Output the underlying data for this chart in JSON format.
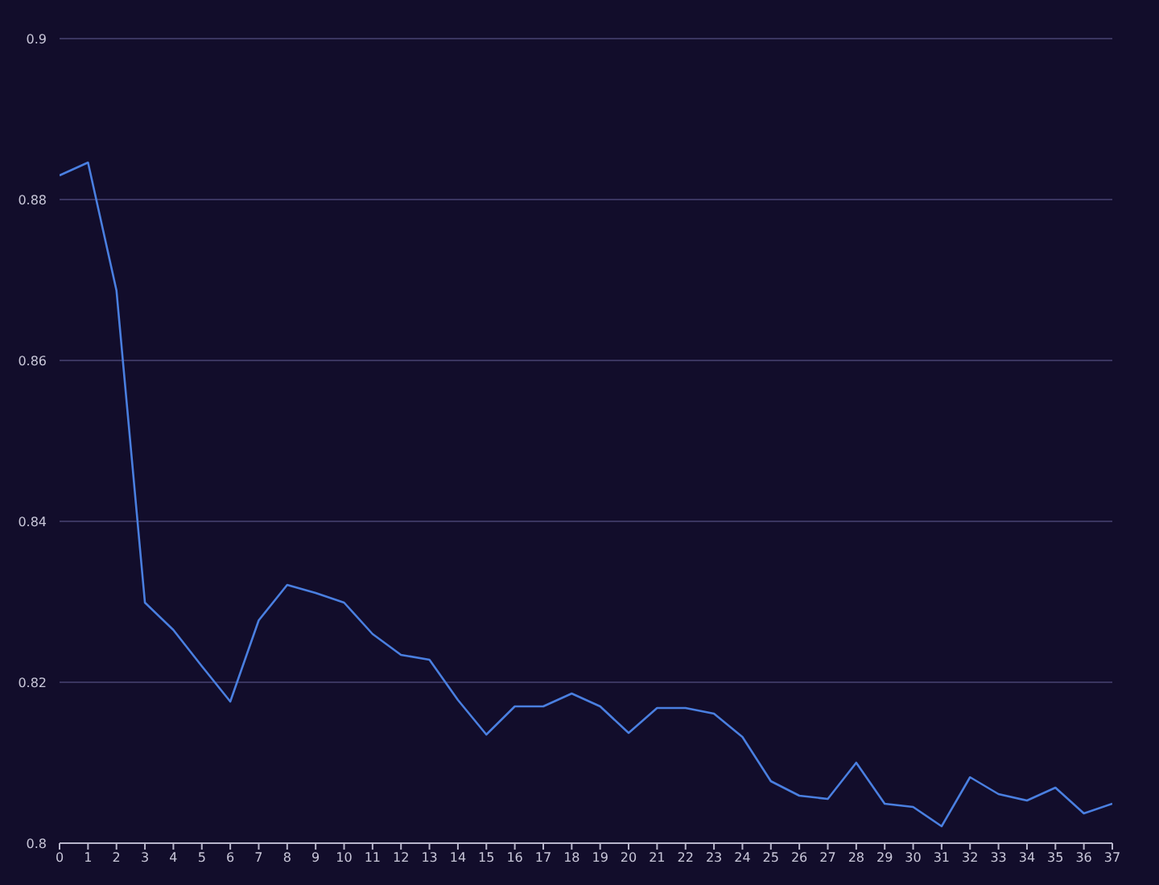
{
  "chart_data": {
    "type": "line",
    "x": [
      0,
      1,
      2,
      3,
      4,
      5,
      6,
      7,
      8,
      9,
      10,
      11,
      12,
      13,
      14,
      15,
      16,
      17,
      18,
      19,
      20,
      21,
      22,
      23,
      24,
      25,
      26,
      27,
      28,
      29,
      30,
      31,
      32,
      33,
      34,
      35,
      36,
      37
    ],
    "series": [
      {
        "color": "#4a7fe0",
        "values": [
          0.883,
          0.8846,
          0.8687,
          0.8299,
          0.8265,
          0.822,
          0.8176,
          0.8277,
          0.8321,
          0.8311,
          0.8299,
          0.826,
          0.8234,
          0.8228,
          0.8178,
          0.8135,
          0.817,
          0.817,
          0.8186,
          0.817,
          0.8137,
          0.8168,
          0.8168,
          0.8161,
          0.8132,
          0.8077,
          0.8059,
          0.8055,
          0.81,
          0.8049,
          0.8045,
          0.8021,
          0.8082,
          0.8061,
          0.8053,
          0.8069,
          0.8037,
          0.8049
        ]
      }
    ],
    "xlim": [
      0,
      37
    ],
    "xticks": [
      0,
      1,
      2,
      3,
      4,
      5,
      6,
      7,
      8,
      9,
      10,
      11,
      12,
      13,
      14,
      15,
      16,
      17,
      18,
      19,
      20,
      21,
      22,
      23,
      24,
      25,
      26,
      27,
      28,
      29,
      30,
      31,
      32,
      33,
      34,
      35,
      36,
      37
    ],
    "ylim": [
      0.8,
      0.9
    ],
    "yticks": [
      0.8,
      0.82,
      0.84,
      0.86,
      0.88,
      0.9
    ],
    "grid": "y",
    "legend": false,
    "marker": "none",
    "line_style": "solid"
  }
}
